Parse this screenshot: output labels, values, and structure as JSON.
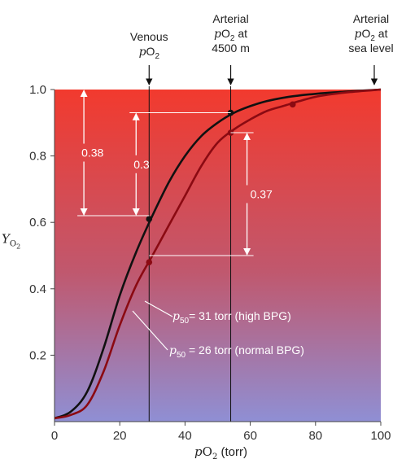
{
  "chart_data": {
    "type": "line",
    "xlabel": "pO2 (torr)",
    "ylabel": "YO2",
    "xlim": [
      0,
      100
    ],
    "ylim": [
      0,
      1.0
    ],
    "x_ticks": [
      0,
      20,
      40,
      60,
      80,
      100
    ],
    "y_ticks": [
      0.2,
      0.4,
      0.6,
      0.8,
      1.0
    ],
    "x_tick_labels": [
      "0",
      "20",
      "40",
      "60",
      "80",
      "100"
    ],
    "y_tick_labels": [
      "0.2",
      "0.4",
      "0.6",
      "0.8",
      "1.0"
    ],
    "series": [
      {
        "name": "p50 = 26 torr (normal BPG)",
        "p50": 26,
        "color": "#111111",
        "x": [
          0,
          5,
          10,
          15,
          20,
          25,
          30,
          35,
          40,
          45,
          50,
          55,
          60,
          65,
          70,
          75,
          80,
          85,
          90,
          95,
          100
        ],
        "y": [
          0.01,
          0.03,
          0.09,
          0.22,
          0.38,
          0.51,
          0.62,
          0.72,
          0.8,
          0.86,
          0.9,
          0.93,
          0.95,
          0.965,
          0.975,
          0.982,
          0.987,
          0.991,
          0.994,
          0.997,
          1.0
        ],
        "points": [
          [
            29,
            0.61
          ],
          [
            54,
            0.93
          ]
        ]
      },
      {
        "name": "p50 = 31 torr (high BPG)",
        "p50": 31,
        "color": "#8b0a12",
        "x": [
          0,
          5,
          10,
          15,
          20,
          25,
          30,
          35,
          40,
          45,
          50,
          55,
          60,
          65,
          70,
          75,
          80,
          85,
          90,
          95,
          100
        ],
        "y": [
          0.01,
          0.02,
          0.05,
          0.15,
          0.29,
          0.41,
          0.5,
          0.59,
          0.68,
          0.77,
          0.84,
          0.88,
          0.91,
          0.935,
          0.95,
          0.965,
          0.978,
          0.986,
          0.992,
          0.996,
          1.0
        ],
        "points": [
          [
            29,
            0.48
          ],
          [
            54,
            0.87
          ],
          [
            73,
            0.955
          ]
        ]
      }
    ],
    "markers": [
      {
        "label": "Venous pO2",
        "lines": [
          "Venous",
          "pO2"
        ],
        "x": 29
      },
      {
        "label": "Arterial pO2 at 4500 m",
        "lines": [
          "Arterial",
          "pO2 at",
          "4500 m"
        ],
        "x": 54
      },
      {
        "label": "Arterial pO2 at sea level",
        "lines": [
          "Arterial",
          "pO2 at",
          "sea level"
        ],
        "x": 100
      }
    ],
    "differences": [
      {
        "label": "0.38",
        "x": 9,
        "y_from": 1.0,
        "y_to": 0.62
      },
      {
        "label": "0.3",
        "x": 25,
        "y_from": 0.93,
        "y_to": 0.62
      },
      {
        "label": "0.37",
        "x": 59,
        "y_from": 0.87,
        "y_to": 0.5
      }
    ],
    "curve_labels": [
      {
        "text": "p50= 31 torr (high BPG)",
        "pre": "p",
        "sub": "50",
        "rest": "= 31 torr (high BPG)"
      },
      {
        "text": "p50 = 26 torr (normal BPG)",
        "pre": "p",
        "sub": "50",
        "rest": " = 26 torr (normal BPG)"
      }
    ],
    "background_gradient": [
      "#f23a2e",
      "#c0586e",
      "#8f8fd4"
    ],
    "grid": false
  }
}
